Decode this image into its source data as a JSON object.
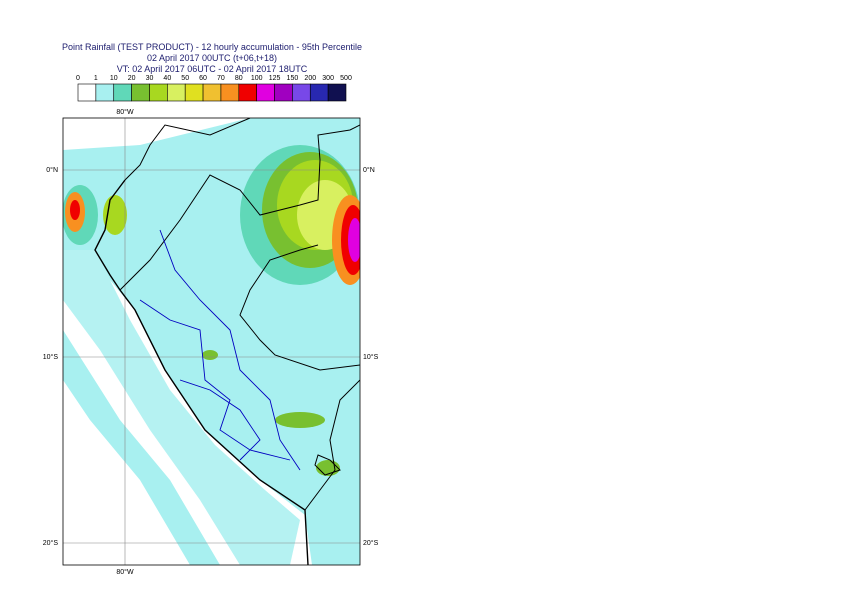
{
  "header": {
    "title": "Point Rainfall (TEST PRODUCT) - 12 hourly accumulation - 95th Percentile",
    "subtitle": "02 April 2017 00UTC (t+06,t+18)",
    "valid_time": "VT: 02 April 2017 06UTC - 02 April 2017 18UTC"
  },
  "legend": {
    "labels": [
      "0",
      "1",
      "10",
      "20",
      "30",
      "40",
      "50",
      "60",
      "70",
      "80",
      "100",
      "125",
      "150",
      "200",
      "300",
      "500"
    ],
    "colors": [
      "#ffffff",
      "#a8f0f0",
      "#60d8b8",
      "#78c030",
      "#a8d820",
      "#d8f060",
      "#e0e020",
      "#f0c030",
      "#f89020",
      "#f00000",
      "#e000e0",
      "#a000c0",
      "#7848e8",
      "#2828b0",
      "#101050"
    ]
  },
  "map": {
    "lon_label_top": "80°W",
    "lon_label_bottom": "80°W",
    "lat_labels": [
      "0°N",
      "10°S",
      "20°S"
    ]
  }
}
